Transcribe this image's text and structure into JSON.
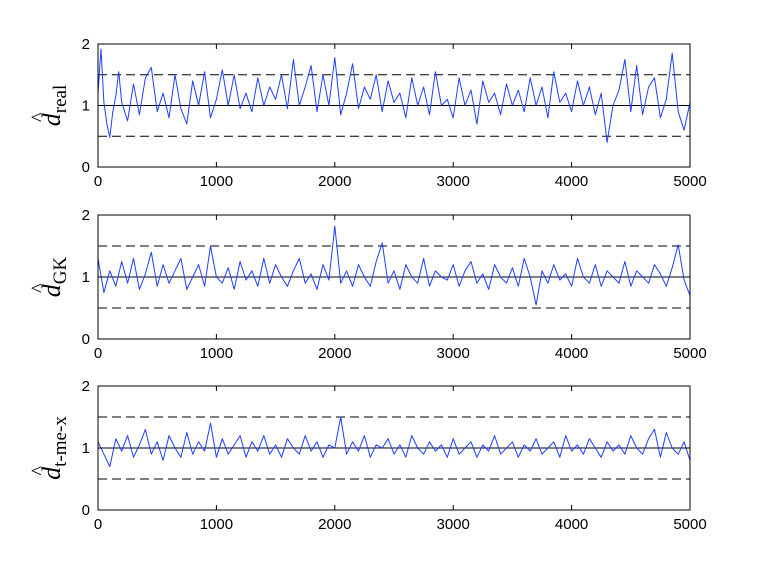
{
  "chart_data": [
    {
      "type": "line",
      "ylabel_symbol": "d",
      "ylabel_subscript": "real",
      "xlim": [
        0,
        5000
      ],
      "ylim": [
        0,
        2
      ],
      "xticks": [
        "0",
        "1000",
        "2000",
        "3000",
        "4000",
        "5000"
      ],
      "yticks": [
        "0",
        "1",
        "2"
      ],
      "reference_lines": [
        {
          "y": 1,
          "style": "solid"
        },
        {
          "y": 0.5,
          "style": "dashed"
        },
        {
          "y": 1.5,
          "style": "dashed"
        }
      ],
      "series": [
        {
          "color": "#1f3fff",
          "x": [
            0,
            25,
            50,
            75,
            100,
            125,
            150,
            175,
            200,
            250,
            300,
            350,
            400,
            450,
            500,
            550,
            600,
            650,
            700,
            750,
            800,
            850,
            900,
            950,
            1000,
            1050,
            1100,
            1150,
            1200,
            1250,
            1300,
            1350,
            1400,
            1450,
            1500,
            1550,
            1600,
            1650,
            1700,
            1750,
            1800,
            1850,
            1900,
            1950,
            2000,
            2050,
            2100,
            2150,
            2200,
            2250,
            2300,
            2350,
            2400,
            2450,
            2500,
            2550,
            2600,
            2650,
            2700,
            2750,
            2800,
            2850,
            2900,
            2950,
            3000,
            3050,
            3100,
            3150,
            3200,
            3250,
            3300,
            3350,
            3400,
            3450,
            3500,
            3550,
            3600,
            3650,
            3700,
            3750,
            3800,
            3850,
            3900,
            3950,
            4000,
            4050,
            4100,
            4150,
            4200,
            4250,
            4300,
            4350,
            4400,
            4450,
            4500,
            4550,
            4600,
            4650,
            4700,
            4750,
            4800,
            4850,
            4900,
            4950,
            5000
          ],
          "y": [
            1.2,
            1.92,
            1.05,
            0.7,
            0.48,
            0.9,
            1.15,
            1.55,
            1.05,
            0.75,
            1.35,
            0.85,
            1.45,
            1.62,
            0.9,
            1.2,
            0.8,
            1.5,
            0.95,
            0.7,
            1.4,
            1.0,
            1.55,
            0.8,
            1.1,
            1.58,
            1.0,
            1.5,
            0.95,
            1.2,
            0.9,
            1.45,
            1.0,
            1.3,
            1.1,
            1.5,
            0.95,
            1.75,
            1.0,
            1.3,
            1.65,
            0.9,
            1.5,
            1.0,
            1.78,
            0.85,
            1.2,
            1.68,
            0.95,
            1.3,
            1.1,
            1.5,
            0.9,
            1.4,
            1.05,
            1.2,
            0.8,
            1.45,
            1.0,
            1.3,
            0.85,
            1.55,
            1.0,
            1.1,
            0.8,
            1.45,
            1.0,
            1.25,
            0.7,
            1.4,
            1.05,
            1.2,
            0.85,
            1.35,
            1.0,
            1.25,
            0.9,
            1.45,
            1.0,
            1.3,
            0.8,
            1.55,
            1.05,
            1.2,
            0.9,
            1.4,
            1.0,
            1.3,
            0.85,
            1.2,
            0.4,
            1.0,
            1.25,
            1.75,
            0.9,
            1.65,
            0.85,
            1.3,
            1.45,
            0.8,
            1.1,
            1.85,
            0.9,
            0.6,
            1.05
          ]
        }
      ]
    },
    {
      "type": "line",
      "ylabel_symbol": "d",
      "ylabel_subscript": "GK",
      "xlim": [
        0,
        5000
      ],
      "ylim": [
        0,
        2
      ],
      "xticks": [
        "0",
        "1000",
        "2000",
        "3000",
        "4000",
        "5000"
      ],
      "yticks": [
        "0",
        "1",
        "2"
      ],
      "reference_lines": [
        {
          "y": 1,
          "style": "solid"
        },
        {
          "y": 0.5,
          "style": "dashed"
        },
        {
          "y": 1.5,
          "style": "dashed"
        }
      ],
      "series": [
        {
          "color": "#1f3fff",
          "x": [
            0,
            50,
            100,
            150,
            200,
            250,
            300,
            350,
            400,
            450,
            500,
            550,
            600,
            650,
            700,
            750,
            800,
            850,
            900,
            950,
            1000,
            1050,
            1100,
            1150,
            1200,
            1250,
            1300,
            1350,
            1400,
            1450,
            1500,
            1550,
            1600,
            1650,
            1700,
            1750,
            1800,
            1850,
            1900,
            1950,
            2000,
            2050,
            2100,
            2150,
            2200,
            2250,
            2300,
            2350,
            2400,
            2450,
            2500,
            2550,
            2600,
            2650,
            2700,
            2750,
            2800,
            2850,
            2900,
            2950,
            3000,
            3050,
            3100,
            3150,
            3200,
            3250,
            3300,
            3350,
            3400,
            3450,
            3500,
            3550,
            3600,
            3650,
            3700,
            3750,
            3800,
            3850,
            3900,
            3950,
            4000,
            4050,
            4100,
            4150,
            4200,
            4250,
            4300,
            4350,
            4400,
            4450,
            4500,
            4550,
            4600,
            4650,
            4700,
            4750,
            4800,
            4850,
            4900,
            4950,
            5000
          ],
          "y": [
            1.3,
            0.75,
            1.1,
            0.85,
            1.25,
            0.9,
            1.3,
            0.8,
            1.05,
            1.4,
            0.85,
            1.2,
            0.9,
            1.1,
            1.3,
            0.8,
            1.0,
            1.2,
            0.85,
            1.5,
            1.0,
            0.9,
            1.15,
            0.8,
            1.25,
            0.95,
            1.1,
            0.85,
            1.3,
            0.9,
            1.2,
            1.0,
            0.85,
            1.1,
            1.3,
            0.9,
            1.05,
            0.8,
            1.2,
            0.95,
            1.82,
            0.9,
            1.1,
            0.85,
            1.2,
            1.0,
            0.85,
            1.25,
            1.55,
            0.9,
            1.1,
            0.8,
            1.2,
            1.0,
            0.9,
            1.3,
            0.85,
            1.1,
            1.0,
            0.95,
            1.2,
            0.85,
            1.1,
            1.25,
            0.9,
            1.05,
            0.8,
            1.2,
            1.0,
            0.9,
            1.15,
            0.85,
            1.3,
            1.0,
            0.55,
            1.1,
            0.9,
            1.2,
            0.95,
            1.05,
            0.85,
            1.3,
            1.0,
            0.9,
            1.2,
            0.85,
            1.1,
            1.0,
            0.9,
            1.25,
            0.85,
            1.1,
            1.0,
            0.9,
            1.2,
            1.05,
            0.85,
            1.15,
            1.52,
            0.95,
            0.7
          ]
        }
      ]
    },
    {
      "type": "line",
      "ylabel_symbol": "d",
      "ylabel_subscript": "t-me-x",
      "xlim": [
        0,
        5000
      ],
      "ylim": [
        0,
        2
      ],
      "xticks": [
        "0",
        "1000",
        "2000",
        "3000",
        "4000",
        "5000"
      ],
      "yticks": [
        "0",
        "1",
        "2"
      ],
      "reference_lines": [
        {
          "y": 1,
          "style": "solid"
        },
        {
          "y": 0.5,
          "style": "dashed"
        },
        {
          "y": 1.5,
          "style": "dashed"
        }
      ],
      "series": [
        {
          "color": "#1f3fff",
          "x": [
            0,
            50,
            100,
            150,
            200,
            250,
            300,
            350,
            400,
            450,
            500,
            550,
            600,
            650,
            700,
            750,
            800,
            850,
            900,
            950,
            1000,
            1050,
            1100,
            1150,
            1200,
            1250,
            1300,
            1350,
            1400,
            1450,
            1500,
            1550,
            1600,
            1650,
            1700,
            1750,
            1800,
            1850,
            1900,
            1950,
            2000,
            2050,
            2100,
            2150,
            2200,
            2250,
            2300,
            2350,
            2400,
            2450,
            2500,
            2550,
            2600,
            2650,
            2700,
            2750,
            2800,
            2850,
            2900,
            2950,
            3000,
            3050,
            3100,
            3150,
            3200,
            3250,
            3300,
            3350,
            3400,
            3450,
            3500,
            3550,
            3600,
            3650,
            3700,
            3750,
            3800,
            3850,
            3900,
            3950,
            4000,
            4050,
            4100,
            4150,
            4200,
            4250,
            4300,
            4350,
            4400,
            4450,
            4500,
            4550,
            4600,
            4650,
            4700,
            4750,
            4800,
            4850,
            4900,
            4950,
            5000
          ],
          "y": [
            1.1,
            0.9,
            0.7,
            1.15,
            0.95,
            1.2,
            0.85,
            1.05,
            1.3,
            0.9,
            1.1,
            0.8,
            1.2,
            1.0,
            0.85,
            1.25,
            0.9,
            1.1,
            0.95,
            1.4,
            0.85,
            1.15,
            0.9,
            1.05,
            1.2,
            0.85,
            1.1,
            0.95,
            1.2,
            0.9,
            1.05,
            0.85,
            1.15,
            1.0,
            0.9,
            1.2,
            0.95,
            1.1,
            0.85,
            1.05,
            1.0,
            1.5,
            0.9,
            1.1,
            0.95,
            1.2,
            0.85,
            1.05,
            1.0,
            1.15,
            0.9,
            1.05,
            0.85,
            1.2,
            1.0,
            0.9,
            1.1,
            0.95,
            1.05,
            0.85,
            1.15,
            0.9,
            1.0,
            1.1,
            0.85,
            1.05,
            0.95,
            1.2,
            0.9,
            1.0,
            1.1,
            0.85,
            1.05,
            0.95,
            1.15,
            0.9,
            1.0,
            1.1,
            0.85,
            1.2,
            0.95,
            1.05,
            0.9,
            1.15,
            1.0,
            0.85,
            1.1,
            0.95,
            1.05,
            0.9,
            1.2,
            1.0,
            0.9,
            1.15,
            1.3,
            0.85,
            1.25,
            1.0,
            0.9,
            1.1,
            0.8
          ]
        }
      ]
    }
  ]
}
